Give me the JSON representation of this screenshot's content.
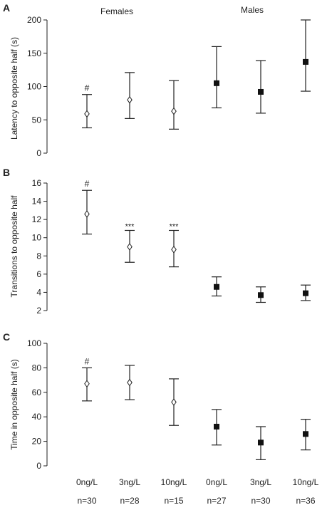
{
  "group_labels": [
    "Females",
    "Males"
  ],
  "x_labels": [
    {
      "dose": "0ng/L",
      "n": "n=30"
    },
    {
      "dose": "3ng/L",
      "n": "n=28"
    },
    {
      "dose": "10ng/L",
      "n": "n=15"
    },
    {
      "dose": "0ng/L",
      "n": "n=27"
    },
    {
      "dose": "3ng/L",
      "n": "n=30"
    },
    {
      "dose": "10ng/L",
      "n": "n=36"
    }
  ],
  "colors": {
    "female_marker": "#ffffff",
    "male_marker": "#111111",
    "ink": "#222222"
  },
  "chart_data": [
    {
      "type": "scatter",
      "panel": "A",
      "ylabel": "Latency to opposite half (s)",
      "ylim": [
        0,
        200
      ],
      "yticks": [
        0,
        50,
        100,
        150,
        200
      ],
      "categories": [
        "0ng/L",
        "3ng/L",
        "10ng/L",
        "0ng/L",
        "3ng/L",
        "10ng/L"
      ],
      "series": [
        {
          "name": "Females",
          "marker": "open-diamond",
          "points": [
            {
              "x": 0,
              "y": 59,
              "low": 38,
              "high": 88,
              "annotation": "#"
            },
            {
              "x": 1,
              "y": 80,
              "low": 52,
              "high": 121,
              "annotation": ""
            },
            {
              "x": 2,
              "y": 63,
              "low": 36,
              "high": 109,
              "annotation": ""
            }
          ]
        },
        {
          "name": "Males",
          "marker": "filled-square",
          "points": [
            {
              "x": 3,
              "y": 105,
              "low": 68,
              "high": 160,
              "annotation": ""
            },
            {
              "x": 4,
              "y": 92,
              "low": 60,
              "high": 139,
              "annotation": ""
            },
            {
              "x": 5,
              "y": 137,
              "low": 93,
              "high": 200,
              "annotation": ""
            }
          ]
        }
      ]
    },
    {
      "type": "scatter",
      "panel": "B",
      "ylabel": "Transitions to opposite half",
      "ylim": [
        2,
        16
      ],
      "yticks": [
        2,
        4,
        6,
        8,
        10,
        12,
        14,
        16
      ],
      "categories": [
        "0ng/L",
        "3ng/L",
        "10ng/L",
        "0ng/L",
        "3ng/L",
        "10ng/L"
      ],
      "series": [
        {
          "name": "Females",
          "marker": "open-diamond",
          "points": [
            {
              "x": 0,
              "y": 12.6,
              "low": 10.4,
              "high": 15.2,
              "annotation": "#"
            },
            {
              "x": 1,
              "y": 9.0,
              "low": 7.3,
              "high": 10.8,
              "annotation": "***"
            },
            {
              "x": 2,
              "y": 8.7,
              "low": 6.8,
              "high": 10.8,
              "annotation": "***"
            }
          ]
        },
        {
          "name": "Males",
          "marker": "filled-square",
          "points": [
            {
              "x": 3,
              "y": 4.6,
              "low": 3.6,
              "high": 5.7,
              "annotation": ""
            },
            {
              "x": 4,
              "y": 3.7,
              "low": 2.9,
              "high": 4.6,
              "annotation": ""
            },
            {
              "x": 5,
              "y": 3.9,
              "low": 3.1,
              "high": 4.8,
              "annotation": ""
            }
          ]
        }
      ]
    },
    {
      "type": "scatter",
      "panel": "C",
      "ylabel": "Time in opposite half (s)",
      "ylim": [
        0,
        100
      ],
      "yticks": [
        0,
        20,
        40,
        60,
        80,
        100
      ],
      "categories": [
        "0ng/L",
        "3ng/L",
        "10ng/L",
        "0ng/L",
        "3ng/L",
        "10ng/L"
      ],
      "series": [
        {
          "name": "Females",
          "marker": "open-diamond",
          "points": [
            {
              "x": 0,
              "y": 67,
              "low": 53,
              "high": 80,
              "annotation": "#"
            },
            {
              "x": 1,
              "y": 68,
              "low": 54,
              "high": 82,
              "annotation": ""
            },
            {
              "x": 2,
              "y": 52,
              "low": 33,
              "high": 71,
              "annotation": ""
            }
          ]
        },
        {
          "name": "Males",
          "marker": "filled-square",
          "points": [
            {
              "x": 3,
              "y": 32,
              "low": 17,
              "high": 46,
              "annotation": ""
            },
            {
              "x": 4,
              "y": 19,
              "low": 5,
              "high": 32,
              "annotation": ""
            },
            {
              "x": 5,
              "y": 26,
              "low": 13,
              "high": 38,
              "annotation": ""
            }
          ]
        }
      ]
    }
  ]
}
